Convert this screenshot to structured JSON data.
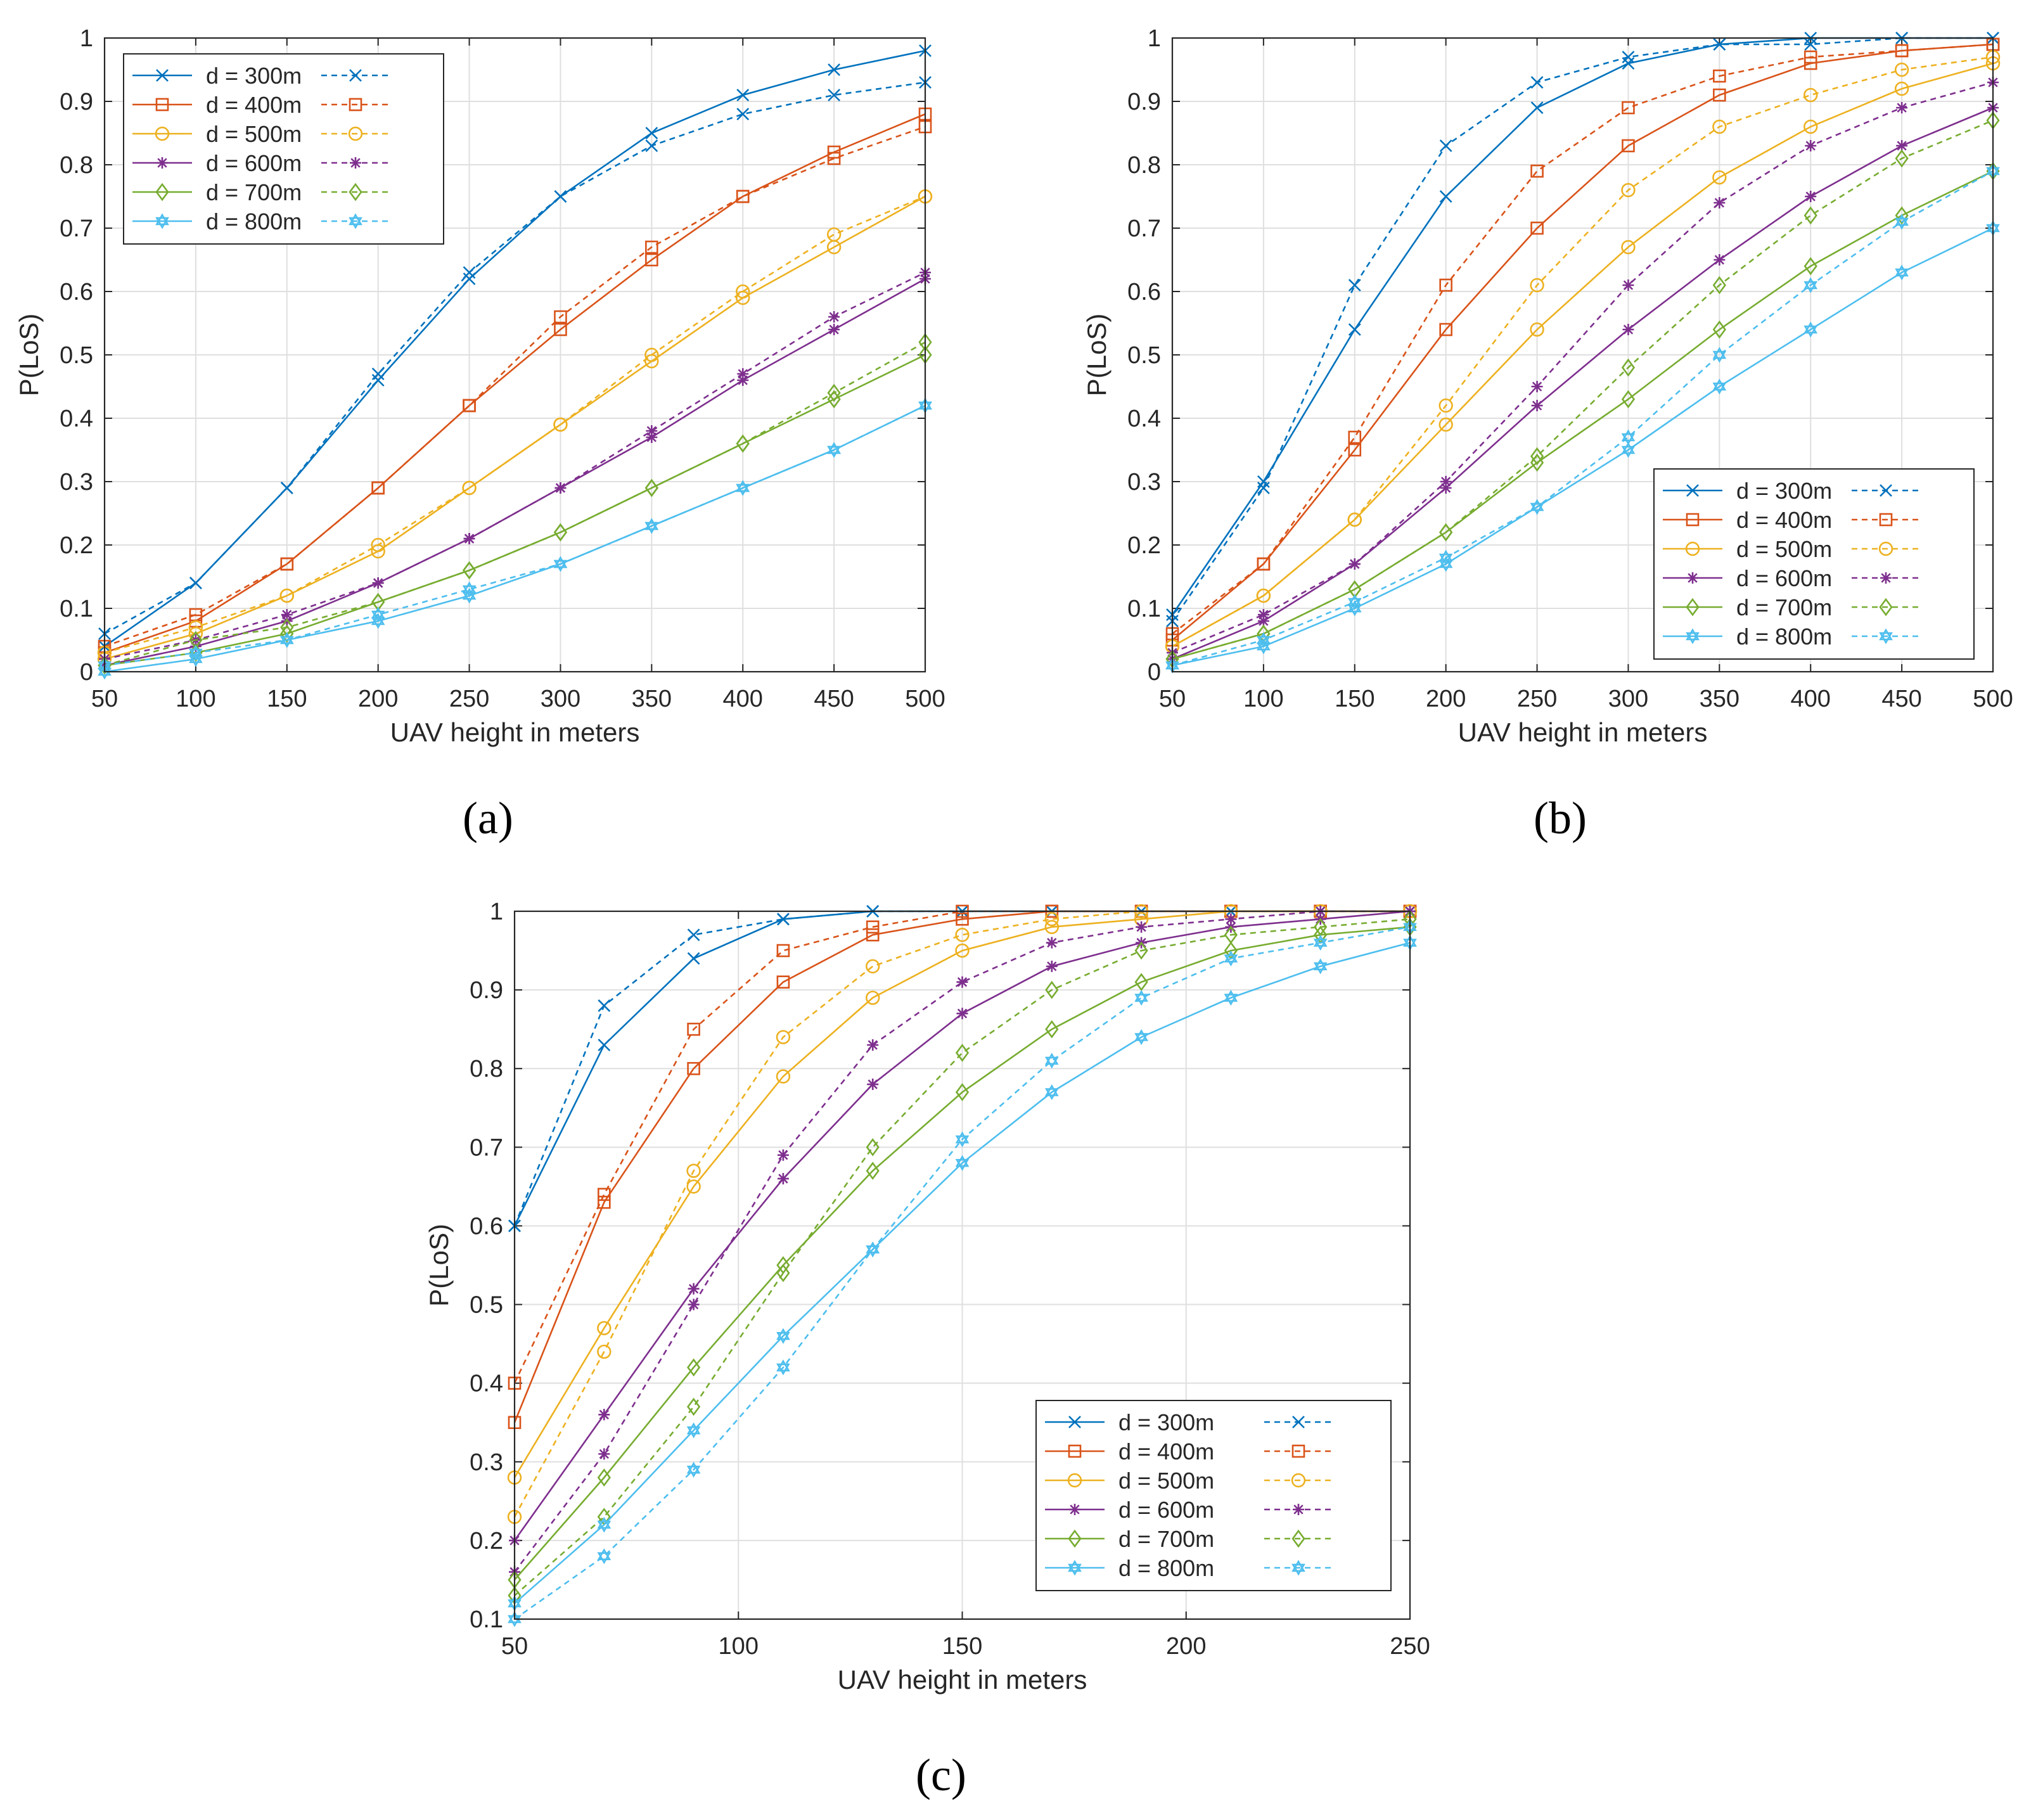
{
  "colors": [
    "#0072BD",
    "#D95319",
    "#EDB120",
    "#7E2F8E",
    "#77AC30",
    "#4DBEEE"
  ],
  "markers": [
    "x-icon",
    "square-icon",
    "circle-icon",
    "asterisk-icon",
    "diamond-icon",
    "hexagram-icon"
  ],
  "captions": [
    "(a)",
    "(b)",
    "(c)"
  ],
  "chart_data": [
    {
      "type": "line",
      "xlabel": "UAV height in meters",
      "ylabel": "P(LoS)",
      "xlim": [
        50,
        500
      ],
      "ylim": [
        0,
        1
      ],
      "xticks": [
        50,
        100,
        150,
        200,
        250,
        300,
        350,
        400,
        450,
        500
      ],
      "yticks": [
        0,
        0.1,
        0.2,
        0.3,
        0.4,
        0.5,
        0.6,
        0.7,
        0.8,
        0.9,
        1
      ],
      "ytick_labels": [
        "0",
        "0.1",
        "0.2",
        "0.3",
        "0.4",
        "0.5",
        "0.6",
        "0.7",
        "0.8",
        "0.9",
        "1"
      ],
      "grid": true,
      "legend_position": "top-left",
      "x": [
        50,
        100,
        150,
        200,
        250,
        300,
        350,
        400,
        450,
        500
      ],
      "series": [
        {
          "name": "d = 300m",
          "solid": [
            0.04,
            0.14,
            0.29,
            0.46,
            0.62,
            0.75,
            0.85,
            0.91,
            0.95,
            0.98
          ],
          "dashed": [
            0.06,
            0.14,
            0.29,
            0.47,
            0.63,
            0.75,
            0.83,
            0.88,
            0.91,
            0.93
          ]
        },
        {
          "name": "d = 400m",
          "solid": [
            0.03,
            0.08,
            0.17,
            0.29,
            0.42,
            0.54,
            0.65,
            0.75,
            0.82,
            0.88
          ],
          "dashed": [
            0.04,
            0.09,
            0.17,
            0.29,
            0.42,
            0.56,
            0.67,
            0.75,
            0.81,
            0.86
          ]
        },
        {
          "name": "d = 500m",
          "solid": [
            0.02,
            0.06,
            0.12,
            0.19,
            0.29,
            0.39,
            0.49,
            0.59,
            0.67,
            0.75
          ],
          "dashed": [
            0.03,
            0.07,
            0.12,
            0.2,
            0.29,
            0.39,
            0.5,
            0.6,
            0.69,
            0.75
          ]
        },
        {
          "name": "d = 600m",
          "solid": [
            0.01,
            0.04,
            0.08,
            0.14,
            0.21,
            0.29,
            0.37,
            0.46,
            0.54,
            0.62
          ],
          "dashed": [
            0.02,
            0.05,
            0.09,
            0.14,
            0.21,
            0.29,
            0.38,
            0.47,
            0.56,
            0.63
          ]
        },
        {
          "name": "d = 700m",
          "solid": [
            0.01,
            0.03,
            0.06,
            0.11,
            0.16,
            0.22,
            0.29,
            0.36,
            0.43,
            0.5
          ],
          "dashed": [
            0.01,
            0.05,
            0.07,
            0.11,
            0.16,
            0.22,
            0.29,
            0.36,
            0.44,
            0.52
          ]
        },
        {
          "name": "d = 800m",
          "solid": [
            0.0,
            0.02,
            0.05,
            0.08,
            0.12,
            0.17,
            0.23,
            0.29,
            0.35,
            0.42
          ],
          "dashed": [
            0.01,
            0.03,
            0.05,
            0.09,
            0.13,
            0.17,
            0.23,
            0.29,
            0.35,
            0.42
          ]
        }
      ]
    },
    {
      "type": "line",
      "xlabel": "UAV height in meters",
      "ylabel": "P(LoS)",
      "xlim": [
        50,
        500
      ],
      "ylim": [
        0,
        1
      ],
      "xticks": [
        50,
        100,
        150,
        200,
        250,
        300,
        350,
        400,
        450,
        500
      ],
      "yticks": [
        0,
        0.1,
        0.2,
        0.3,
        0.4,
        0.5,
        0.6,
        0.7,
        0.8,
        0.9,
        1
      ],
      "ytick_labels": [
        "0",
        "0.1",
        "0.2",
        "0.3",
        "0.4",
        "0.5",
        "0.6",
        "0.7",
        "0.8",
        "0.9",
        "1"
      ],
      "grid": true,
      "legend_position": "bottom-right",
      "x": [
        50,
        100,
        150,
        200,
        250,
        300,
        350,
        400,
        450,
        500
      ],
      "series": [
        {
          "name": "d = 300m",
          "solid": [
            0.09,
            0.3,
            0.54,
            0.75,
            0.89,
            0.96,
            0.99,
            1.0,
            1.0,
            1.0
          ],
          "dashed": [
            0.08,
            0.29,
            0.61,
            0.83,
            0.93,
            0.97,
            0.99,
            0.99,
            1.0,
            1.0
          ]
        },
        {
          "name": "d = 400m",
          "solid": [
            0.05,
            0.17,
            0.35,
            0.54,
            0.7,
            0.83,
            0.91,
            0.96,
            0.98,
            0.99
          ],
          "dashed": [
            0.06,
            0.17,
            0.37,
            0.61,
            0.79,
            0.89,
            0.94,
            0.97,
            0.98,
            0.99
          ]
        },
        {
          "name": "d = 500m",
          "solid": [
            0.04,
            0.12,
            0.24,
            0.39,
            0.54,
            0.67,
            0.78,
            0.86,
            0.92,
            0.96
          ],
          "dashed": [
            0.04,
            0.12,
            0.24,
            0.42,
            0.61,
            0.76,
            0.86,
            0.91,
            0.95,
            0.97
          ]
        },
        {
          "name": "d = 600m",
          "solid": [
            0.02,
            0.08,
            0.17,
            0.29,
            0.42,
            0.54,
            0.65,
            0.75,
            0.83,
            0.89
          ],
          "dashed": [
            0.03,
            0.09,
            0.17,
            0.3,
            0.45,
            0.61,
            0.74,
            0.83,
            0.89,
            0.93
          ]
        },
        {
          "name": "d = 700m",
          "solid": [
            0.02,
            0.06,
            0.13,
            0.22,
            0.33,
            0.43,
            0.54,
            0.64,
            0.72,
            0.79
          ],
          "dashed": [
            0.02,
            0.06,
            0.13,
            0.22,
            0.34,
            0.48,
            0.61,
            0.72,
            0.81,
            0.87
          ]
        },
        {
          "name": "d = 800m",
          "solid": [
            0.01,
            0.04,
            0.1,
            0.17,
            0.26,
            0.35,
            0.45,
            0.54,
            0.63,
            0.7
          ],
          "dashed": [
            0.01,
            0.05,
            0.11,
            0.18,
            0.26,
            0.37,
            0.5,
            0.61,
            0.71,
            0.79
          ]
        }
      ]
    },
    {
      "type": "line",
      "xlabel": "UAV height in meters",
      "ylabel": "P(LoS)",
      "xlim": [
        50,
        250
      ],
      "ylim": [
        0.1,
        1
      ],
      "xticks": [
        50,
        100,
        150,
        200,
        250
      ],
      "yticks": [
        0.1,
        0.2,
        0.3,
        0.4,
        0.5,
        0.6,
        0.7,
        0.8,
        0.9,
        1
      ],
      "ytick_labels": [
        "0.1",
        "0.2",
        "0.3",
        "0.4",
        "0.5",
        "0.6",
        "0.7",
        "0.8",
        "0.9",
        "1"
      ],
      "grid": true,
      "legend_position": "bottom-right",
      "x": [
        50,
        70,
        90,
        110,
        130,
        150,
        170,
        190,
        210,
        230,
        250
      ],
      "series": [
        {
          "name": "d = 300m",
          "solid": [
            0.6,
            0.83,
            0.94,
            0.99,
            1.0,
            1.0,
            1.0,
            1.0,
            1.0,
            1.0,
            1.0
          ],
          "dashed": [
            0.6,
            0.88,
            0.97,
            0.99,
            1.0,
            1.0,
            1.0,
            1.0,
            1.0,
            1.0,
            1.0
          ]
        },
        {
          "name": "d = 400m",
          "solid": [
            0.35,
            0.63,
            0.8,
            0.91,
            0.97,
            0.99,
            1.0,
            1.0,
            1.0,
            1.0,
            1.0
          ],
          "dashed": [
            0.4,
            0.64,
            0.85,
            0.95,
            0.98,
            1.0,
            1.0,
            1.0,
            1.0,
            1.0,
            1.0
          ]
        },
        {
          "name": "d = 500m",
          "solid": [
            0.28,
            0.47,
            0.65,
            0.79,
            0.89,
            0.95,
            0.98,
            0.99,
            1.0,
            1.0,
            1.0
          ],
          "dashed": [
            0.23,
            0.44,
            0.67,
            0.84,
            0.93,
            0.97,
            0.99,
            1.0,
            1.0,
            1.0,
            1.0
          ]
        },
        {
          "name": "d = 600m",
          "solid": [
            0.2,
            0.36,
            0.52,
            0.66,
            0.78,
            0.87,
            0.93,
            0.96,
            0.98,
            0.99,
            1.0
          ],
          "dashed": [
            0.16,
            0.31,
            0.5,
            0.69,
            0.83,
            0.91,
            0.96,
            0.98,
            0.99,
            1.0,
            1.0
          ]
        },
        {
          "name": "d = 700m",
          "solid": [
            0.15,
            0.28,
            0.42,
            0.55,
            0.67,
            0.77,
            0.85,
            0.91,
            0.95,
            0.97,
            0.98
          ],
          "dashed": [
            0.13,
            0.23,
            0.37,
            0.54,
            0.7,
            0.82,
            0.9,
            0.95,
            0.97,
            0.98,
            0.99
          ]
        },
        {
          "name": "d = 800m",
          "solid": [
            0.12,
            0.22,
            0.34,
            0.46,
            0.57,
            0.68,
            0.77,
            0.84,
            0.89,
            0.93,
            0.96
          ],
          "dashed": [
            0.1,
            0.18,
            0.29,
            0.42,
            0.57,
            0.71,
            0.81,
            0.89,
            0.94,
            0.96,
            0.98
          ]
        }
      ]
    }
  ]
}
